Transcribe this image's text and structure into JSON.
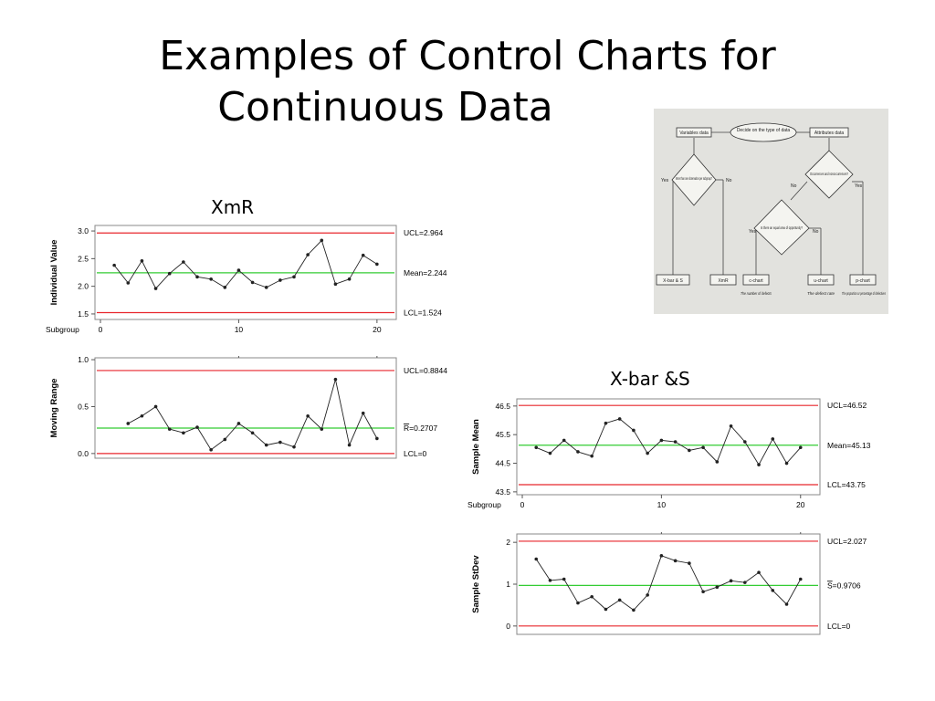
{
  "slide": {
    "title_line1": "Examples of Control Charts for",
    "title_line2": "Continuous Data"
  },
  "captions": {
    "xmr": "XmR",
    "xbar_s": "X-bar &S"
  },
  "colors": {
    "limit": "#e8262c",
    "center": "#33cc33",
    "data": "#222222",
    "frame": "#888888"
  },
  "flowchart": {
    "start": "Decide on the type of data",
    "variables": "Variables data",
    "attributes": "Attributes data",
    "q_subgroup": "More than one observation per subgroup?",
    "q_occurrence": "Occurrences and nonoccurrences?",
    "q_opportunity": "Is there an equal area of opportunity?",
    "yes": "Yes",
    "no": "No",
    "out_xbar_s": "X-bar & S",
    "out_xmr": "XmR",
    "out_c": "c-chart",
    "out_u": "u-chart",
    "out_p": "p-chart",
    "note_c": "The number of defects",
    "note_u": "The defect rate",
    "note_p": "The proportion or percentage of defectives"
  },
  "chart_data": [
    {
      "type": "line",
      "ylabel": "Individual Value",
      "xlabel": "Subgroup",
      "x": [
        1,
        2,
        3,
        4,
        5,
        6,
        7,
        8,
        9,
        10,
        11,
        12,
        13,
        14,
        15,
        16,
        17,
        18,
        19,
        20
      ],
      "values": [
        2.38,
        2.06,
        2.46,
        1.96,
        2.23,
        2.44,
        2.17,
        2.13,
        1.98,
        2.29,
        2.07,
        1.98,
        2.11,
        2.17,
        2.57,
        2.83,
        2.04,
        2.13,
        2.56,
        2.4
      ],
      "ylim": [
        1.4,
        3.1
      ],
      "yticks": [
        "1.5",
        "2.0",
        "2.5",
        "3.0"
      ],
      "xlim": [
        0,
        21
      ],
      "xticks": [
        "0",
        "10",
        "20"
      ],
      "limits": {
        "ucl": 2.964,
        "center": 2.244,
        "lcl": 1.524
      },
      "limit_labels": {
        "ucl": "UCL=2.964",
        "center": "Mean=2.244",
        "lcl": "LCL=1.524"
      }
    },
    {
      "type": "line",
      "ylabel": "Moving Range",
      "x": [
        2,
        3,
        4,
        5,
        6,
        7,
        8,
        9,
        10,
        11,
        12,
        13,
        14,
        15,
        16,
        17,
        18,
        19,
        20
      ],
      "values": [
        0.32,
        0.4,
        0.5,
        0.26,
        0.22,
        0.28,
        0.04,
        0.15,
        0.32,
        0.22,
        0.09,
        0.12,
        0.07,
        0.4,
        0.26,
        0.79,
        0.09,
        0.43,
        0.16
      ],
      "ylim": [
        -0.05,
        1.02
      ],
      "yticks": [
        "0.0",
        "0.5",
        "1.0"
      ],
      "xlim": [
        0,
        21
      ],
      "limits": {
        "ucl": 0.8844,
        "center": 0.2707,
        "lcl": 0
      },
      "limit_labels": {
        "ucl": "UCL=0.8844",
        "center": "R=0.2707",
        "center_bar": "R",
        "center_rest": "=0.2707",
        "lcl": "LCL=0"
      }
    },
    {
      "type": "line",
      "ylabel": "Sample Mean",
      "xlabel": "Subgroup",
      "x": [
        1,
        2,
        3,
        4,
        5,
        6,
        7,
        8,
        9,
        10,
        11,
        12,
        13,
        14,
        15,
        16,
        17,
        18,
        19,
        20
      ],
      "values": [
        45.05,
        44.85,
        45.3,
        44.9,
        44.75,
        45.9,
        46.05,
        45.65,
        44.85,
        45.3,
        45.25,
        44.95,
        45.05,
        44.55,
        45.8,
        45.25,
        44.45,
        45.35,
        44.5,
        45.05
      ],
      "ylim": [
        43.4,
        46.75
      ],
      "yticks": [
        "43.5",
        "44.5",
        "45.5",
        "46.5"
      ],
      "xlim": [
        0,
        21
      ],
      "xticks": [
        "0",
        "10",
        "20"
      ],
      "limits": {
        "ucl": 46.52,
        "center": 45.13,
        "lcl": 43.75
      },
      "limit_labels": {
        "ucl": "UCL=46.52",
        "center": "Mean=45.13",
        "lcl": "LCL=43.75"
      }
    },
    {
      "type": "line",
      "ylabel": "Sample StDev",
      "x": [
        1,
        2,
        3,
        4,
        5,
        6,
        7,
        8,
        9,
        10,
        11,
        12,
        13,
        14,
        15,
        16,
        17,
        18,
        19,
        20
      ],
      "values": [
        1.6,
        1.09,
        1.12,
        0.55,
        0.7,
        0.4,
        0.62,
        0.38,
        0.74,
        1.68,
        1.56,
        1.5,
        0.82,
        0.93,
        1.08,
        1.04,
        1.28,
        0.85,
        0.52,
        1.12
      ],
      "ylim": [
        -0.2,
        2.2
      ],
      "yticks": [
        "0",
        "1",
        "2"
      ],
      "xlim": [
        0,
        21
      ],
      "limits": {
        "ucl": 2.027,
        "center": 0.9706,
        "lcl": 0
      },
      "limit_labels": {
        "ucl": "UCL=2.027",
        "center": "S=0.9706",
        "center_bar": "S",
        "center_rest": "=0.9706",
        "lcl": "LCL=0"
      }
    }
  ]
}
